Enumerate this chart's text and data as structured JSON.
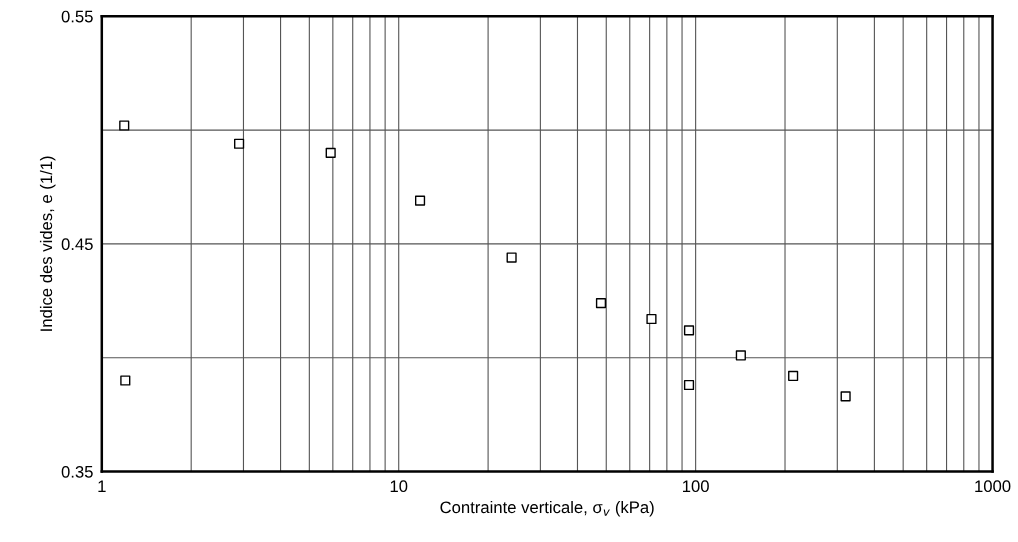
{
  "chart_data": {
    "type": "scatter",
    "xlabel": "Contrainte verticale, σ$_{v}$ (kPa)",
    "ylabel": "Indice des vides, e (1/1)",
    "log": "x",
    "xlim": [
      1,
      1000
    ],
    "xticks": [
      1,
      {
        "value": 2,
        "label": null
      },
      {
        "value": 3,
        "label": null
      },
      {
        "value": 4,
        "label": null
      },
      {
        "value": 5,
        "label": null
      },
      {
        "value": 6,
        "label": null
      },
      {
        "value": 7,
        "label": null
      },
      {
        "value": 8,
        "label": null
      },
      {
        "value": 9,
        "label": null
      },
      10,
      {
        "value": 20,
        "label": null
      },
      {
        "value": 30,
        "label": null
      },
      {
        "value": 40,
        "label": null
      },
      {
        "value": 50,
        "label": null
      },
      {
        "value": 60,
        "label": null
      },
      {
        "value": 70,
        "label": null
      },
      {
        "value": 80,
        "label": null
      },
      {
        "value": 90,
        "label": null
      },
      100,
      {
        "value": 200,
        "label": null
      },
      {
        "value": 300,
        "label": null
      },
      {
        "value": 400,
        "label": null
      },
      {
        "value": 500,
        "label": null
      },
      {
        "value": 600,
        "label": null
      },
      {
        "value": 700,
        "label": null
      },
      {
        "value": 800,
        "label": null
      },
      {
        "value": 900,
        "label": null
      },
      1000
    ],
    "ylim": [
      0.35,
      0.55
    ],
    "yticks": [
      0.35,
      {
        "value": 0.4,
        "label": null
      },
      0.45,
      {
        "value": 0.5,
        "label": null
      },
      0.55
    ],
    "grid": true,
    "marker": "square",
    "series": [
      {
        "color": "#000000",
        "x": [
          1.19,
          1.2,
          2.9,
          5.9,
          11.8,
          24,
          48,
          71,
          95,
          95,
          142,
          213,
          320
        ],
        "values": [
          0.502,
          0.39,
          0.494,
          0.49,
          0.469,
          0.444,
          0.424,
          0.417,
          0.412,
          0.388,
          0.401,
          0.392,
          0.383
        ]
      }
    ]
  }
}
